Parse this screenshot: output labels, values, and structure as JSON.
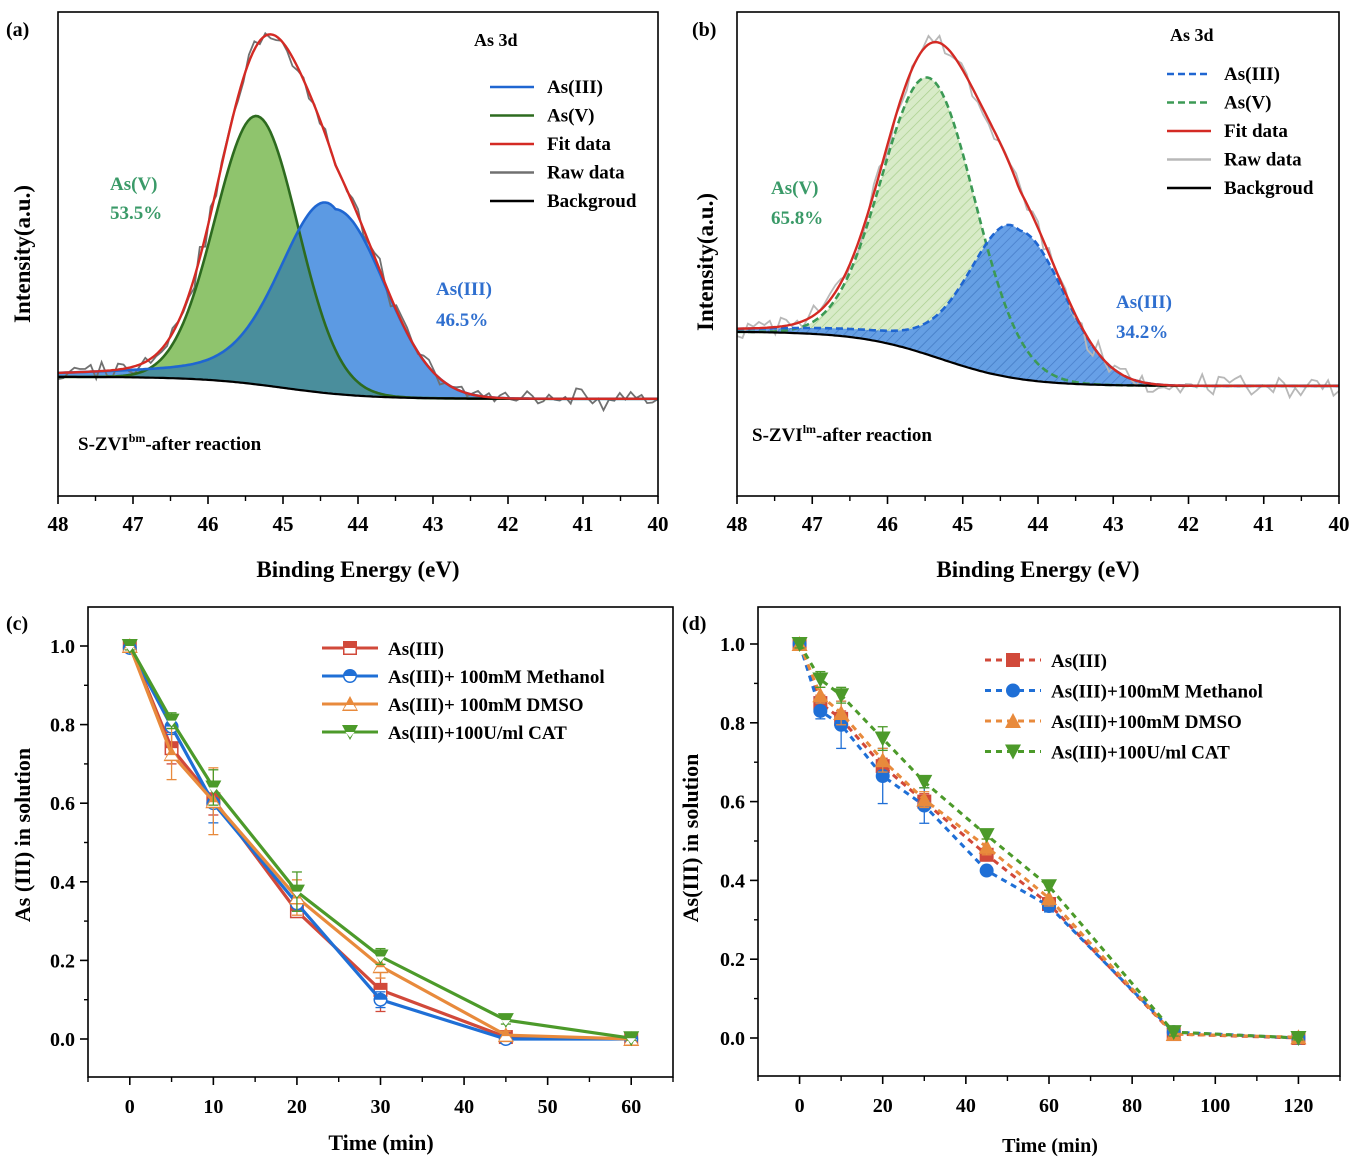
{
  "colors": {
    "as3_solid": "#1f66d1",
    "as5_solid": "#2d6b1f",
    "fit": "#d42a24",
    "raw_a": "#707070",
    "raw_b": "#b8b8b8",
    "background": "#000000",
    "as3_fill": "#5c9ae3",
    "as5_fill": "#8fc46d",
    "overlap_fill": "#4a8e9c",
    "as5_label": "#3a9a68",
    "as3_label": "#2f6fcf",
    "as5_dashed": "#3c9a55",
    "as5_hatch_fill": "#d8ebc8",
    "s_red": "#d1493a",
    "s_blue": "#1f6fd6",
    "s_orange": "#e88a3c",
    "s_green": "#4c9a2a"
  },
  "chart_data": [
    {
      "id": "a",
      "panel_label": "(a)",
      "type": "area",
      "title": "As 3d",
      "xlabel": "Binding Energy (eV)",
      "ylabel": "Intensity(a.u.)",
      "xlim": [
        48,
        40
      ],
      "x_ticks": [
        48,
        47,
        46,
        45,
        44,
        43,
        42,
        41,
        40
      ],
      "y_ticks": [],
      "annotation_sample": "S-ZVI",
      "annotation_sup": "bm",
      "annotation_rest": "-after reaction",
      "peaks": [
        {
          "name": "As(V)",
          "center_eV": 45.35,
          "height": 0.61,
          "fwhm_eV": 1.3,
          "percent": "53.5%"
        },
        {
          "name": "As(III)",
          "center_eV": 44.3,
          "height": 0.42,
          "fwhm_eV": 1.55,
          "tail": "high-BE",
          "percent": "46.5%"
        }
      ],
      "background_levels": {
        "start": 0.08,
        "end": 0.03,
        "inflection_eV": 45.0
      },
      "legend": [
        "As(III)",
        "As(V)",
        "Fit data",
        "Raw data",
        "Backgroud"
      ],
      "legend_styles": [
        "solid",
        "solid",
        "solid",
        "solid",
        "solid"
      ],
      "labels": {
        "as5": {
          "name": "As(V)",
          "pct": "53.5%"
        },
        "as3": {
          "name": "As(III)",
          "pct": "46.5%"
        }
      },
      "legend_position": "top-right"
    },
    {
      "id": "b",
      "panel_label": "(b)",
      "type": "area",
      "title": "As 3d",
      "xlabel": "Binding Energy (eV)",
      "ylabel": "Intensity(a.u.)",
      "xlim": [
        48,
        40
      ],
      "x_ticks": [
        48,
        47,
        46,
        45,
        44,
        43,
        42,
        41,
        40
      ],
      "y_ticks": [],
      "annotation_sample": "S-ZVI",
      "annotation_sup": "lm",
      "annotation_rest": "-after reaction",
      "peaks": [
        {
          "name": "As(V)",
          "center_eV": 45.45,
          "height": 0.56,
          "fwhm_eV": 1.45,
          "percent": "65.8%"
        },
        {
          "name": "As(III)",
          "center_eV": 44.25,
          "height": 0.3,
          "fwhm_eV": 1.4,
          "tail": "high-BE",
          "percent": "34.2%"
        }
      ],
      "background_levels": {
        "start": 0.3,
        "end": 0.19,
        "inflection_eV": 45.3
      },
      "legend": [
        "As(III)",
        "As(V)",
        "Fit data",
        "Raw data",
        "Backgroud"
      ],
      "legend_styles": [
        "dashed",
        "dashed",
        "solid",
        "solid",
        "solid"
      ],
      "labels": {
        "as5": {
          "name": "As(V)",
          "pct": "65.8%"
        },
        "as3": {
          "name": "As(III)",
          "pct": "34.2%"
        }
      },
      "legend_position": "top-right"
    },
    {
      "id": "c",
      "panel_label": "(c)",
      "type": "line",
      "xlabel": "Time (min)",
      "ylabel": "As (III) in solution",
      "xlim": [
        -5,
        65
      ],
      "ylim": [
        -0.1,
        1.1
      ],
      "x_ticks": [
        0,
        10,
        20,
        30,
        40,
        50,
        60
      ],
      "y_ticks": [
        0.0,
        0.2,
        0.4,
        0.6,
        0.8,
        1.0
      ],
      "y_tick_labels": [
        "0.0",
        "0.2",
        "0.4",
        "0.6",
        "0.8",
        "1.0"
      ],
      "x": [
        0,
        5,
        10,
        20,
        30,
        45,
        60
      ],
      "series": [
        {
          "name": "As(III)",
          "marker": "square",
          "values": [
            1.0,
            0.74,
            0.61,
            0.325,
            0.125,
            0.005,
            0.0
          ],
          "err": [
            0.01,
            0.04,
            0.04,
            0.01,
            0.055,
            0.01,
            0.005
          ]
        },
        {
          "name": "As(III)+ 100mM Methanol",
          "marker": "circle",
          "values": [
            0.995,
            0.795,
            0.6,
            0.345,
            0.1,
            0.0,
            0.0
          ],
          "err": [
            0.01,
            0.02,
            0.05,
            0.02,
            0.02,
            0.005,
            0.005
          ]
        },
        {
          "name": "As(III)+ 100mM DMSO",
          "marker": "triangle-up",
          "values": [
            1.0,
            0.725,
            0.605,
            0.36,
            0.185,
            0.01,
            0.0
          ],
          "err": [
            0.01,
            0.065,
            0.085,
            0.045,
            0.03,
            0.01,
            0.005
          ]
        },
        {
          "name": "As(III)+100U/ml CAT",
          "marker": "triangle-down",
          "values": [
            1.0,
            0.81,
            0.64,
            0.375,
            0.21,
            0.048,
            0.002
          ],
          "err": [
            0.01,
            0.02,
            0.045,
            0.05,
            0.02,
            0.01,
            0.005
          ]
        }
      ],
      "line_style": "solid",
      "legend_position": "top-right"
    },
    {
      "id": "d",
      "panel_label": "(d)",
      "type": "line",
      "xlabel": "Time (min)",
      "ylabel": "As(III) in solution",
      "xlim": [
        -10,
        130
      ],
      "ylim": [
        -0.1,
        1.1
      ],
      "x_ticks": [
        0,
        20,
        40,
        60,
        80,
        100,
        120
      ],
      "y_ticks": [
        0.0,
        0.2,
        0.4,
        0.6,
        0.8,
        1.0
      ],
      "y_tick_labels": [
        "0.0",
        "0.2",
        "0.4",
        "0.6",
        "0.8",
        "1.0"
      ],
      "x": [
        0,
        5,
        10,
        20,
        30,
        45,
        60,
        90,
        120
      ],
      "series": [
        {
          "name": "As(III)",
          "marker": "square",
          "values": [
            1.0,
            0.85,
            0.81,
            0.69,
            0.6,
            0.465,
            0.34,
            0.01,
            0.0
          ],
          "err": [
            0.01,
            0.02,
            0.02,
            0.02,
            0.02,
            0.015,
            0.015,
            0.01,
            0.005
          ]
        },
        {
          "name": "As(III)+100mM Methanol",
          "marker": "circle",
          "values": [
            1.0,
            0.83,
            0.795,
            0.665,
            0.59,
            0.425,
            0.335,
            0.015,
            0.0
          ],
          "err": [
            0.01,
            0.02,
            0.06,
            0.07,
            0.045,
            0.01,
            0.015,
            0.01,
            0.005
          ]
        },
        {
          "name": "As(III)+100mM DMSO",
          "marker": "triangle-up",
          "values": [
            1.0,
            0.87,
            0.825,
            0.705,
            0.605,
            0.485,
            0.355,
            0.01,
            0.002
          ],
          "err": [
            0.01,
            0.02,
            0.03,
            0.03,
            0.02,
            0.02,
            0.02,
            0.01,
            0.005
          ]
        },
        {
          "name": "As(III)+100U/ml CAT",
          "marker": "triangle-down",
          "values": [
            1.0,
            0.91,
            0.87,
            0.76,
            0.65,
            0.515,
            0.385,
            0.015,
            0.0
          ],
          "err": [
            0.01,
            0.02,
            0.02,
            0.03,
            0.015,
            0.01,
            0.01,
            0.01,
            0.005
          ]
        }
      ],
      "line_style": "dashed",
      "legend_position": "top-right"
    }
  ]
}
